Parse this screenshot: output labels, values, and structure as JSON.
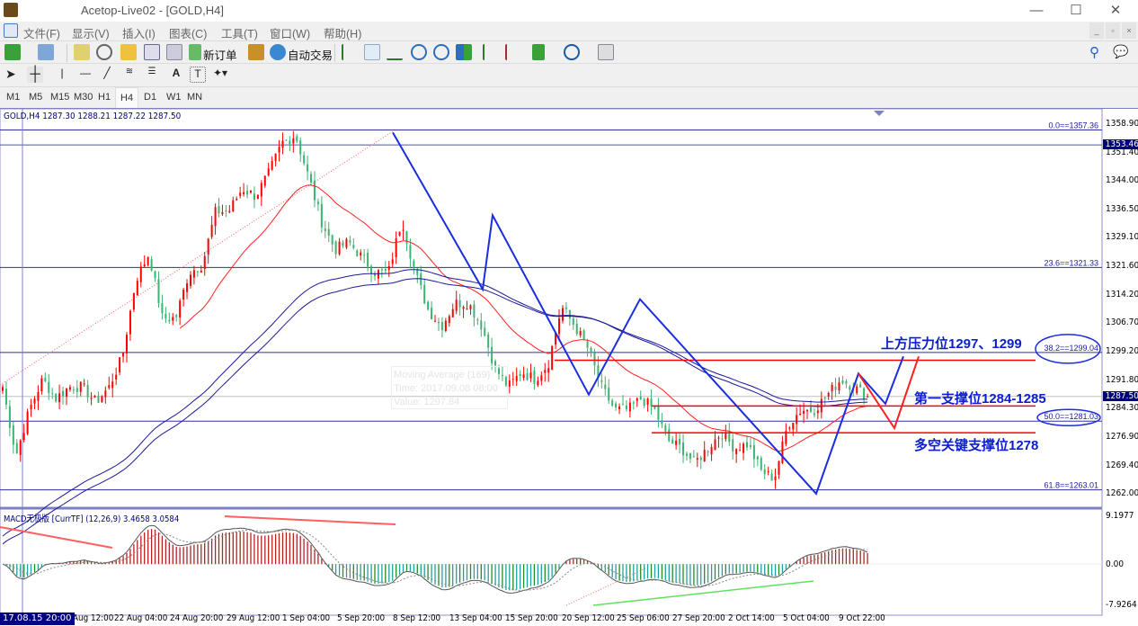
{
  "window": {
    "title": "Acetop-Live02 - [GOLD,H4]",
    "min": "—",
    "max": "☐",
    "close": "✕"
  },
  "menu": [
    "文件(F)",
    "显示(V)",
    "插入(I)",
    "图表(C)",
    "工具(T)",
    "窗口(W)",
    "帮助(H)"
  ],
  "toolbar": {
    "new_order": "新订单",
    "auto_trading": "自动交易"
  },
  "timeframes": [
    "M1",
    "M5",
    "M15",
    "M30",
    "H1",
    "H4",
    "D1",
    "W1",
    "MN"
  ],
  "active_timeframe": "H4",
  "chart": {
    "header": "GOLD,H4  1287.30 1288.21 1287.22 1287.50",
    "price_ticks": [
      "1358.90",
      "1351.40",
      "1344.00",
      "1336.50",
      "1329.10",
      "1321.60",
      "1314.20",
      "1306.70",
      "1299.20",
      "1291.80",
      "1284.30",
      "1276.90",
      "1269.40",
      "1262.00"
    ],
    "bid_label": "1287.50",
    "hline_label": "1353.46",
    "fib_labels": [
      "0.0==1357.36",
      "23.6==1321.33",
      "38.2==1299.04",
      "50.0==1281.03",
      "61.8==1263.01"
    ],
    "annotations": {
      "resistance": "上方压力位1297、1299",
      "support1": "第一支撑位1284-1285",
      "key_support": "多空关键支撑位1278"
    },
    "tooltip": {
      "line1": "Moving Average (169)",
      "line2": "Time: 2017.09.08 08:00",
      "line3": "Value: 1297.84"
    },
    "macd_header": "MACD无极版 [CurrTF] (12,26,9) 3.4658 3.0584",
    "macd_ticks": [
      "9.1977",
      "0.00",
      "-7.9264"
    ],
    "time_cursor": "17.08.15 20:00",
    "time_ticks": [
      "17 Aug 12:00",
      "22 Aug 04:00",
      "24 Aug 20:00",
      "29 Aug 12:00",
      "1 Sep 04:00",
      "5 Sep 20:00",
      "8 Sep 12:00",
      "13 Sep 04:00",
      "15 Sep 20:00",
      "20 Sep 12:00",
      "25 Sep 06:00",
      "27 Sep 20:00",
      "2 Oct 14:00",
      "5 Oct 04:00",
      "9 Oct 22:00"
    ]
  },
  "chart_data": {
    "type": "candlestick",
    "symbol": "GOLD",
    "timeframe": "H4",
    "ylim": [
      1262.0,
      1358.9
    ],
    "last": {
      "open": 1287.3,
      "high": 1288.21,
      "low": 1287.22,
      "close": 1287.5
    },
    "fibonacci": [
      {
        "level": 0.0,
        "price": 1357.36
      },
      {
        "level": 23.6,
        "price": 1321.33
      },
      {
        "level": 38.2,
        "price": 1299.04
      },
      {
        "level": 50.0,
        "price": 1281.03
      },
      {
        "level": 61.8,
        "price": 1263.01
      }
    ],
    "support_resistance": [
      1297,
      1285,
      1278
    ],
    "price_path": [
      1290,
      1272,
      1284,
      1292,
      1287,
      1290,
      1290,
      1286,
      1290,
      1298,
      1318,
      1325,
      1308,
      1308,
      1320,
      1322,
      1336,
      1336,
      1342,
      1340,
      1346,
      1354,
      1356,
      1345,
      1333,
      1326,
      1328,
      1324,
      1320,
      1320,
      1334,
      1320,
      1310,
      1306,
      1312,
      1312,
      1306,
      1295,
      1290,
      1294,
      1292,
      1296,
      1311,
      1306,
      1300,
      1290,
      1284,
      1284,
      1287,
      1284,
      1276,
      1274,
      1270,
      1274,
      1278,
      1274,
      1275,
      1268,
      1266,
      1280,
      1284,
      1284,
      1288,
      1292,
      1290,
      1287.5
    ],
    "macd": {
      "params": [
        12,
        26,
        9
      ],
      "ylim": [
        -7.9264,
        9.1977
      ],
      "main": 3.4658,
      "signal": 3.0584
    },
    "colors": {
      "up": "#ff0000",
      "down": "#3cb371",
      "ma_fast": "#ff2020",
      "ma_slow": "#1a1a9a",
      "zigzag": "#1a2ee0",
      "fib": "#3030a0"
    }
  }
}
